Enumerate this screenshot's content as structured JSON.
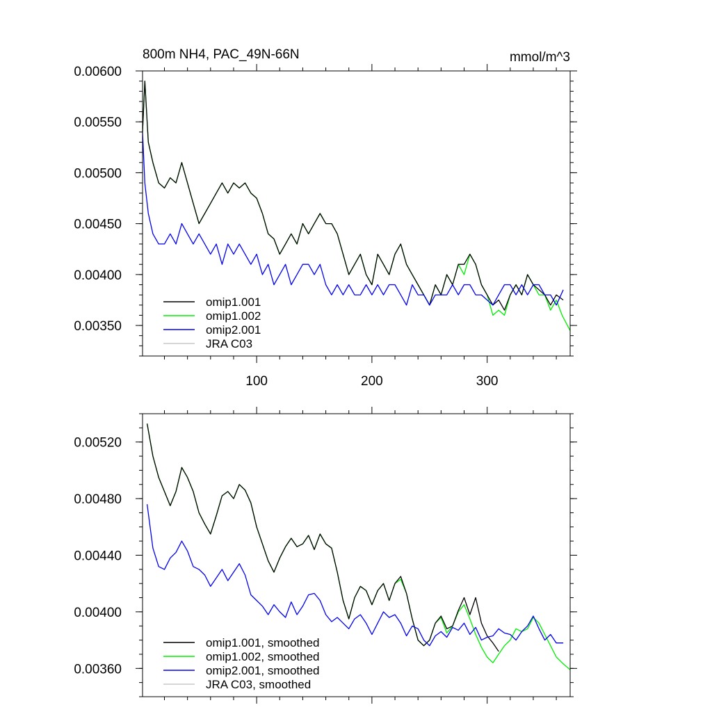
{
  "chart_data": [
    {
      "type": "line",
      "title": "800m NH4, PAC_49N-66N",
      "units": "mmol/m^3",
      "xlim": [
        1,
        372
      ],
      "ylim": [
        0.0032,
        0.006
      ],
      "x_ticks": [
        100,
        200,
        300
      ],
      "x_tick_labels": [
        "100",
        "200",
        "300"
      ],
      "y_ticks": [
        0.0035,
        0.004,
        0.0045,
        0.005,
        0.0055,
        0.006
      ],
      "y_tick_labels": [
        "0.00350",
        "0.00400",
        "0.00450",
        "0.00500",
        "0.00550",
        "0.00600"
      ],
      "legend_placement": "bottom-left",
      "series": [
        {
          "name": "omip1.001",
          "color": "#000000",
          "x": [
            1,
            3,
            6,
            10,
            15,
            20,
            25,
            30,
            35,
            40,
            45,
            50,
            55,
            60,
            65,
            70,
            75,
            80,
            85,
            90,
            95,
            100,
            105,
            110,
            115,
            120,
            125,
            130,
            135,
            140,
            145,
            150,
            155,
            160,
            165,
            170,
            175,
            180,
            185,
            190,
            195,
            200,
            205,
            210,
            215,
            220,
            225,
            230,
            235,
            240,
            245,
            250,
            255,
            260,
            265,
            270,
            275,
            280,
            285,
            290,
            295,
            300,
            305,
            310,
            315,
            320,
            325,
            330,
            335,
            340,
            345,
            350,
            355,
            360,
            366
          ],
          "y": [
            0.0054,
            0.0059,
            0.0053,
            0.0051,
            0.0049,
            0.00485,
            0.00495,
            0.0049,
            0.0051,
            0.0049,
            0.0047,
            0.0045,
            0.0046,
            0.0047,
            0.0048,
            0.0049,
            0.0048,
            0.0049,
            0.00485,
            0.0049,
            0.0048,
            0.00475,
            0.0046,
            0.0044,
            0.00435,
            0.0042,
            0.0043,
            0.0044,
            0.0043,
            0.0045,
            0.0044,
            0.0045,
            0.0046,
            0.0045,
            0.0045,
            0.0044,
            0.0042,
            0.004,
            0.0041,
            0.0042,
            0.004,
            0.0039,
            0.0042,
            0.0041,
            0.004,
            0.0042,
            0.0043,
            0.0041,
            0.004,
            0.0039,
            0.0038,
            0.0037,
            0.0039,
            0.0038,
            0.004,
            0.0039,
            0.0041,
            0.0041,
            0.0042,
            0.0041,
            0.0039,
            0.0038,
            0.0037,
            0.00375,
            0.00365,
            0.0038,
            0.0039,
            0.0038,
            0.004,
            0.0039,
            0.00385,
            0.0038,
            0.0037,
            0.0038,
            0.00375
          ]
        },
        {
          "name": "omip1.002",
          "color": "#00ee00",
          "x": [
            1,
            3,
            6,
            10,
            15,
            20,
            25,
            30,
            35,
            40,
            45,
            50,
            55,
            60,
            65,
            70,
            75,
            80,
            85,
            90,
            95,
            100,
            105,
            110,
            115,
            120,
            125,
            130,
            135,
            140,
            145,
            150,
            155,
            160,
            165,
            170,
            175,
            180,
            185,
            190,
            195,
            200,
            205,
            210,
            215,
            220,
            225,
            230,
            235,
            240,
            245,
            250,
            255,
            260,
            265,
            270,
            275,
            280,
            285,
            290,
            295,
            300,
            305,
            310,
            315,
            320,
            325,
            330,
            335,
            340,
            345,
            350,
            355,
            360,
            365,
            372
          ],
          "y": [
            0.0054,
            0.0059,
            0.0053,
            0.0051,
            0.0049,
            0.00485,
            0.00495,
            0.0049,
            0.0051,
            0.0049,
            0.0047,
            0.0045,
            0.0046,
            0.0047,
            0.0048,
            0.0049,
            0.0048,
            0.0049,
            0.00485,
            0.0049,
            0.0048,
            0.00475,
            0.0046,
            0.0044,
            0.00435,
            0.0042,
            0.0043,
            0.0044,
            0.0043,
            0.0045,
            0.0044,
            0.0045,
            0.0046,
            0.0045,
            0.0045,
            0.0044,
            0.0042,
            0.004,
            0.0041,
            0.0042,
            0.004,
            0.0039,
            0.0042,
            0.0041,
            0.004,
            0.0042,
            0.0043,
            0.0041,
            0.004,
            0.0039,
            0.0038,
            0.0037,
            0.0039,
            0.0038,
            0.004,
            0.0039,
            0.0041,
            0.004,
            0.0042,
            0.0041,
            0.0039,
            0.0038,
            0.0036,
            0.00365,
            0.0036,
            0.0038,
            0.0039,
            0.0038,
            0.004,
            0.0039,
            0.0038,
            0.0038,
            0.00365,
            0.00375,
            0.0036,
            0.00345
          ]
        },
        {
          "name": "omip2.001",
          "color": "#0000ee",
          "x": [
            1,
            3,
            6,
            10,
            15,
            20,
            25,
            30,
            35,
            40,
            45,
            50,
            55,
            60,
            65,
            70,
            75,
            80,
            85,
            90,
            95,
            100,
            105,
            110,
            115,
            120,
            125,
            130,
            135,
            140,
            145,
            150,
            155,
            160,
            165,
            170,
            175,
            180,
            185,
            190,
            195,
            200,
            205,
            210,
            215,
            220,
            225,
            230,
            235,
            240,
            245,
            250,
            255,
            260,
            265,
            270,
            275,
            280,
            285,
            290,
            295,
            300,
            305,
            310,
            315,
            320,
            325,
            330,
            335,
            340,
            345,
            350,
            355,
            360,
            366
          ],
          "y": [
            0.0054,
            0.0049,
            0.0046,
            0.0044,
            0.0043,
            0.0043,
            0.0044,
            0.0043,
            0.0045,
            0.0044,
            0.0043,
            0.0044,
            0.0043,
            0.0042,
            0.0043,
            0.0041,
            0.0043,
            0.0042,
            0.0043,
            0.0042,
            0.0041,
            0.0042,
            0.004,
            0.0041,
            0.0039,
            0.004,
            0.0041,
            0.0039,
            0.004,
            0.0041,
            0.0041,
            0.004,
            0.0041,
            0.0039,
            0.0038,
            0.0039,
            0.0038,
            0.0039,
            0.0038,
            0.0038,
            0.0039,
            0.0038,
            0.0039,
            0.0038,
            0.0039,
            0.0039,
            0.0038,
            0.0037,
            0.0039,
            0.0038,
            0.0038,
            0.0037,
            0.0038,
            0.0038,
            0.0038,
            0.0039,
            0.0038,
            0.0039,
            0.0039,
            0.0038,
            0.0038,
            0.00375,
            0.0037,
            0.0038,
            0.0039,
            0.0039,
            0.0038,
            0.0039,
            0.0038,
            0.0039,
            0.0039,
            0.0038,
            0.0038,
            0.0037,
            0.00385
          ]
        },
        {
          "name": "JRA C03",
          "color": "#c8c8c8",
          "x": [],
          "y": []
        }
      ]
    },
    {
      "type": "line",
      "title": "",
      "xlim": [
        1,
        372
      ],
      "ylim": [
        0.0034,
        0.0054
      ],
      "x_ticks": [
        100,
        200,
        300
      ],
      "y_ticks": [
        0.0036,
        0.004,
        0.0044,
        0.0048,
        0.0052
      ],
      "y_tick_labels": [
        "0.00360",
        "0.00400",
        "0.00440",
        "0.00480",
        "0.00520"
      ],
      "legend_placement": "bottom-left",
      "series": [
        {
          "name": "omip1.001, smoothed",
          "color": "#000000",
          "x": [
            5,
            10,
            15,
            20,
            25,
            30,
            35,
            40,
            45,
            50,
            55,
            60,
            65,
            70,
            75,
            80,
            85,
            90,
            95,
            100,
            105,
            110,
            115,
            120,
            125,
            130,
            135,
            140,
            145,
            150,
            155,
            160,
            165,
            170,
            175,
            180,
            185,
            190,
            195,
            200,
            205,
            210,
            215,
            220,
            225,
            230,
            235,
            240,
            245,
            250,
            255,
            260,
            265,
            270,
            275,
            280,
            285,
            290,
            295,
            300,
            305,
            310
          ],
          "y": [
            0.00533,
            0.0051,
            0.00495,
            0.00485,
            0.00475,
            0.00485,
            0.00502,
            0.00495,
            0.00485,
            0.0047,
            0.00462,
            0.00455,
            0.00468,
            0.00482,
            0.00485,
            0.0048,
            0.0049,
            0.00486,
            0.00477,
            0.0046,
            0.00448,
            0.00436,
            0.00428,
            0.00438,
            0.00446,
            0.00452,
            0.00446,
            0.00448,
            0.00454,
            0.00444,
            0.00455,
            0.00448,
            0.00445,
            0.00428,
            0.00408,
            0.00395,
            0.0041,
            0.00418,
            0.00415,
            0.00405,
            0.00415,
            0.0042,
            0.00408,
            0.0042,
            0.00425,
            0.00413,
            0.00395,
            0.0038,
            0.00376,
            0.0038,
            0.00392,
            0.00397,
            0.00388,
            0.0039,
            0.00401,
            0.0041,
            0.00398,
            0.0041,
            0.00392,
            0.00383,
            0.00378,
            0.00372
          ]
        },
        {
          "name": "omip1.002, smoothed",
          "color": "#00ee00",
          "x": [
            5,
            10,
            15,
            20,
            25,
            30,
            35,
            40,
            45,
            50,
            55,
            60,
            65,
            70,
            75,
            80,
            85,
            90,
            95,
            100,
            105,
            110,
            115,
            120,
            125,
            130,
            135,
            140,
            145,
            150,
            155,
            160,
            165,
            170,
            175,
            180,
            185,
            190,
            195,
            200,
            205,
            210,
            215,
            220,
            225,
            230,
            235,
            240,
            245,
            250,
            255,
            260,
            265,
            270,
            275,
            280,
            285,
            290,
            295,
            300,
            305,
            310,
            315,
            320,
            325,
            330,
            335,
            340,
            345,
            350,
            355,
            360,
            365,
            372
          ],
          "y": [
            0.00533,
            0.0051,
            0.00495,
            0.00485,
            0.00475,
            0.00485,
            0.00502,
            0.00495,
            0.00485,
            0.0047,
            0.00462,
            0.00455,
            0.00468,
            0.00482,
            0.00485,
            0.0048,
            0.0049,
            0.00486,
            0.00477,
            0.0046,
            0.00448,
            0.00436,
            0.00428,
            0.00438,
            0.00446,
            0.00452,
            0.00446,
            0.00448,
            0.00454,
            0.00444,
            0.00455,
            0.00448,
            0.00445,
            0.00428,
            0.00408,
            0.00395,
            0.0041,
            0.00418,
            0.00415,
            0.00405,
            0.00415,
            0.0042,
            0.00408,
            0.0042,
            0.00423,
            0.00413,
            0.00395,
            0.0038,
            0.00376,
            0.0038,
            0.00392,
            0.00396,
            0.00385,
            0.0039,
            0.004,
            0.00405,
            0.00395,
            0.00384,
            0.00375,
            0.00368,
            0.00364,
            0.0037,
            0.00376,
            0.0038,
            0.00388,
            0.00386,
            0.00388,
            0.00396,
            0.00392,
            0.00384,
            0.00376,
            0.00368,
            0.00364,
            0.00359
          ]
        },
        {
          "name": "omip2.001, smoothed",
          "color": "#0000ee",
          "x": [
            5,
            10,
            15,
            20,
            25,
            30,
            35,
            40,
            45,
            50,
            55,
            60,
            65,
            70,
            75,
            80,
            85,
            90,
            95,
            100,
            105,
            110,
            115,
            120,
            125,
            130,
            135,
            140,
            145,
            150,
            155,
            160,
            165,
            170,
            175,
            180,
            185,
            190,
            195,
            200,
            205,
            210,
            215,
            220,
            225,
            230,
            235,
            240,
            245,
            250,
            255,
            260,
            265,
            270,
            275,
            280,
            285,
            290,
            295,
            300,
            305,
            310,
            315,
            320,
            325,
            330,
            335,
            340,
            345,
            350,
            355,
            360,
            366
          ],
          "y": [
            0.00476,
            0.00445,
            0.00432,
            0.0043,
            0.00438,
            0.00442,
            0.0045,
            0.00443,
            0.00432,
            0.0043,
            0.00426,
            0.00418,
            0.00424,
            0.0043,
            0.00422,
            0.00428,
            0.00434,
            0.00426,
            0.00412,
            0.00408,
            0.00404,
            0.00398,
            0.00405,
            0.004,
            0.00396,
            0.00407,
            0.00398,
            0.00404,
            0.00412,
            0.00413,
            0.00408,
            0.00398,
            0.00393,
            0.00396,
            0.00392,
            0.00388,
            0.00395,
            0.00398,
            0.00392,
            0.00384,
            0.00392,
            0.004,
            0.00396,
            0.00398,
            0.00392,
            0.00383,
            0.0039,
            0.00388,
            0.0038,
            0.00376,
            0.00383,
            0.00386,
            0.00382,
            0.00389,
            0.00387,
            0.00392,
            0.00384,
            0.00389,
            0.0038,
            0.00382,
            0.00383,
            0.00388,
            0.00385,
            0.00384,
            0.0038,
            0.00386,
            0.0039,
            0.00397,
            0.00388,
            0.0038,
            0.00384,
            0.00378,
            0.00378
          ]
        },
        {
          "name": "JRA C03, smoothed",
          "color": "#c8c8c8",
          "x": [],
          "y": []
        }
      ]
    }
  ]
}
